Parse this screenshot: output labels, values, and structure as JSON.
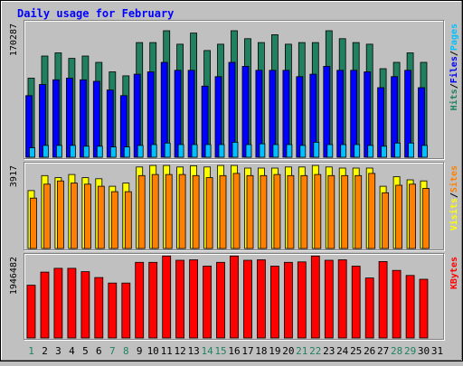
{
  "title": "Daily usage for February",
  "colors": {
    "background": "#c0c0c0",
    "panel": "#c0c0c0",
    "title_text": "#0000ff",
    "axis_text": "#000000",
    "weekday": "#000000",
    "weekend": "#208060",
    "hits": "#208060",
    "files": "#0000ff",
    "pages": "#00c0ff",
    "visits": "#ffff00",
    "sites": "#ff8000",
    "kbytes": "#ff0000",
    "separator": "#000000"
  },
  "chart_data": [
    {
      "type": "bar",
      "panel": "hits-files-pages",
      "max_label": "170287",
      "ylim": [
        0,
        170287
      ],
      "legend": [
        {
          "text": "Hits",
          "color_key": "hits"
        },
        {
          "text": "/",
          "color_key": "separator"
        },
        {
          "text": "Files",
          "color_key": "files"
        },
        {
          "text": "/",
          "color_key": "separator"
        },
        {
          "text": "Pages",
          "color_key": "pages"
        }
      ],
      "x": [
        "1",
        "2",
        "3",
        "4",
        "5",
        "6",
        "7",
        "8",
        "9",
        "10",
        "11",
        "12",
        "13",
        "14",
        "15",
        "16",
        "17",
        "18",
        "19",
        "20",
        "21",
        "22",
        "23",
        "24",
        "25",
        "26",
        "27",
        "28",
        "29",
        "30",
        "31"
      ],
      "series": [
        {
          "name": "Hits",
          "values": [
            100000,
            128000,
            132000,
            125000,
            128000,
            120000,
            108000,
            103000,
            145000,
            145000,
            160000,
            143000,
            157000,
            135000,
            143000,
            160000,
            150000,
            145000,
            155000,
            143000,
            145000,
            145000,
            160000,
            150000,
            145000,
            143000,
            112000,
            120000,
            132000,
            120000,
            null
          ]
        },
        {
          "name": "Files",
          "values": [
            78000,
            92000,
            98000,
            100000,
            98000,
            96000,
            85000,
            78000,
            105000,
            108000,
            120000,
            110000,
            110000,
            90000,
            102000,
            120000,
            115000,
            110000,
            110000,
            110000,
            102000,
            105000,
            115000,
            110000,
            110000,
            108000,
            88000,
            102000,
            110000,
            88000,
            null
          ]
        },
        {
          "name": "Pages",
          "values": [
            12000,
            15000,
            15000,
            15000,
            14000,
            14000,
            13000,
            13000,
            15000,
            16000,
            18000,
            16000,
            16000,
            16000,
            16000,
            19000,
            16000,
            17000,
            16000,
            16000,
            15000,
            19000,
            16000,
            16000,
            16000,
            15000,
            14000,
            18000,
            18000,
            15000,
            null
          ]
        }
      ]
    },
    {
      "type": "bar",
      "panel": "visits-sites",
      "max_label": "3917",
      "ylim": [
        0,
        3917
      ],
      "legend": [
        {
          "text": "Visits",
          "color_key": "visits"
        },
        {
          "text": "/",
          "color_key": "separator"
        },
        {
          "text": "Sites",
          "color_key": "sites"
        }
      ],
      "x": [
        "1",
        "2",
        "3",
        "4",
        "5",
        "6",
        "7",
        "8",
        "9",
        "10",
        "11",
        "12",
        "13",
        "14",
        "15",
        "16",
        "17",
        "18",
        "19",
        "20",
        "21",
        "22",
        "23",
        "24",
        "25",
        "26",
        "27",
        "28",
        "29",
        "30",
        "31"
      ],
      "series": [
        {
          "name": "Visits",
          "values": [
            2700,
            3400,
            3300,
            3450,
            3300,
            3250,
            2900,
            3050,
            3800,
            3870,
            3870,
            3800,
            3860,
            3800,
            3870,
            3870,
            3750,
            3750,
            3750,
            3800,
            3800,
            3870,
            3800,
            3750,
            3750,
            3750,
            2900,
            3350,
            3200,
            3150,
            null
          ]
        },
        {
          "name": "Sites",
          "values": [
            2350,
            3000,
            3150,
            3050,
            3000,
            2900,
            2650,
            2650,
            3400,
            3450,
            3450,
            3450,
            3400,
            3300,
            3400,
            3500,
            3400,
            3400,
            3450,
            3400,
            3400,
            3450,
            3400,
            3400,
            3400,
            3500,
            2600,
            2950,
            3000,
            2800,
            null
          ]
        }
      ]
    },
    {
      "type": "bar",
      "panel": "kbytes",
      "max_label": "1946482",
      "ylim": [
        0,
        1946482
      ],
      "legend": [
        {
          "text": "KBytes",
          "color_key": "kbytes"
        }
      ],
      "x": [
        "1",
        "2",
        "3",
        "4",
        "5",
        "6",
        "7",
        "8",
        "9",
        "10",
        "11",
        "12",
        "13",
        "14",
        "15",
        "16",
        "17",
        "18",
        "19",
        "20",
        "21",
        "22",
        "23",
        "24",
        "25",
        "26",
        "27",
        "28",
        "29",
        "30",
        "31"
      ],
      "series": [
        {
          "name": "KBytes",
          "values": [
            1250000,
            1560000,
            1650000,
            1650000,
            1570000,
            1430000,
            1300000,
            1300000,
            1790000,
            1790000,
            1940000,
            1840000,
            1850000,
            1700000,
            1790000,
            1940000,
            1840000,
            1850000,
            1700000,
            1790000,
            1800000,
            1940000,
            1840000,
            1850000,
            1700000,
            1420000,
            1810000,
            1600000,
            1480000,
            1390000,
            null
          ]
        }
      ]
    }
  ],
  "x_labels": [
    {
      "text": "1",
      "weekend": true
    },
    {
      "text": "2",
      "weekend": false
    },
    {
      "text": "3",
      "weekend": false
    },
    {
      "text": "4",
      "weekend": false
    },
    {
      "text": "5",
      "weekend": false
    },
    {
      "text": "6",
      "weekend": false
    },
    {
      "text": "7",
      "weekend": true
    },
    {
      "text": "8",
      "weekend": true
    },
    {
      "text": "9",
      "weekend": false
    },
    {
      "text": "10",
      "weekend": false
    },
    {
      "text": "11",
      "weekend": false
    },
    {
      "text": "12",
      "weekend": false
    },
    {
      "text": "13",
      "weekend": false
    },
    {
      "text": "14",
      "weekend": true
    },
    {
      "text": "15",
      "weekend": true
    },
    {
      "text": "16",
      "weekend": false
    },
    {
      "text": "17",
      "weekend": false
    },
    {
      "text": "18",
      "weekend": false
    },
    {
      "text": "19",
      "weekend": false
    },
    {
      "text": "20",
      "weekend": false
    },
    {
      "text": "21",
      "weekend": true
    },
    {
      "text": "22",
      "weekend": true
    },
    {
      "text": "23",
      "weekend": false
    },
    {
      "text": "24",
      "weekend": false
    },
    {
      "text": "25",
      "weekend": false
    },
    {
      "text": "26",
      "weekend": false
    },
    {
      "text": "27",
      "weekend": false
    },
    {
      "text": "28",
      "weekend": true
    },
    {
      "text": "29",
      "weekend": true
    },
    {
      "text": "30",
      "weekend": false
    },
    {
      "text": "31",
      "weekend": false
    }
  ]
}
